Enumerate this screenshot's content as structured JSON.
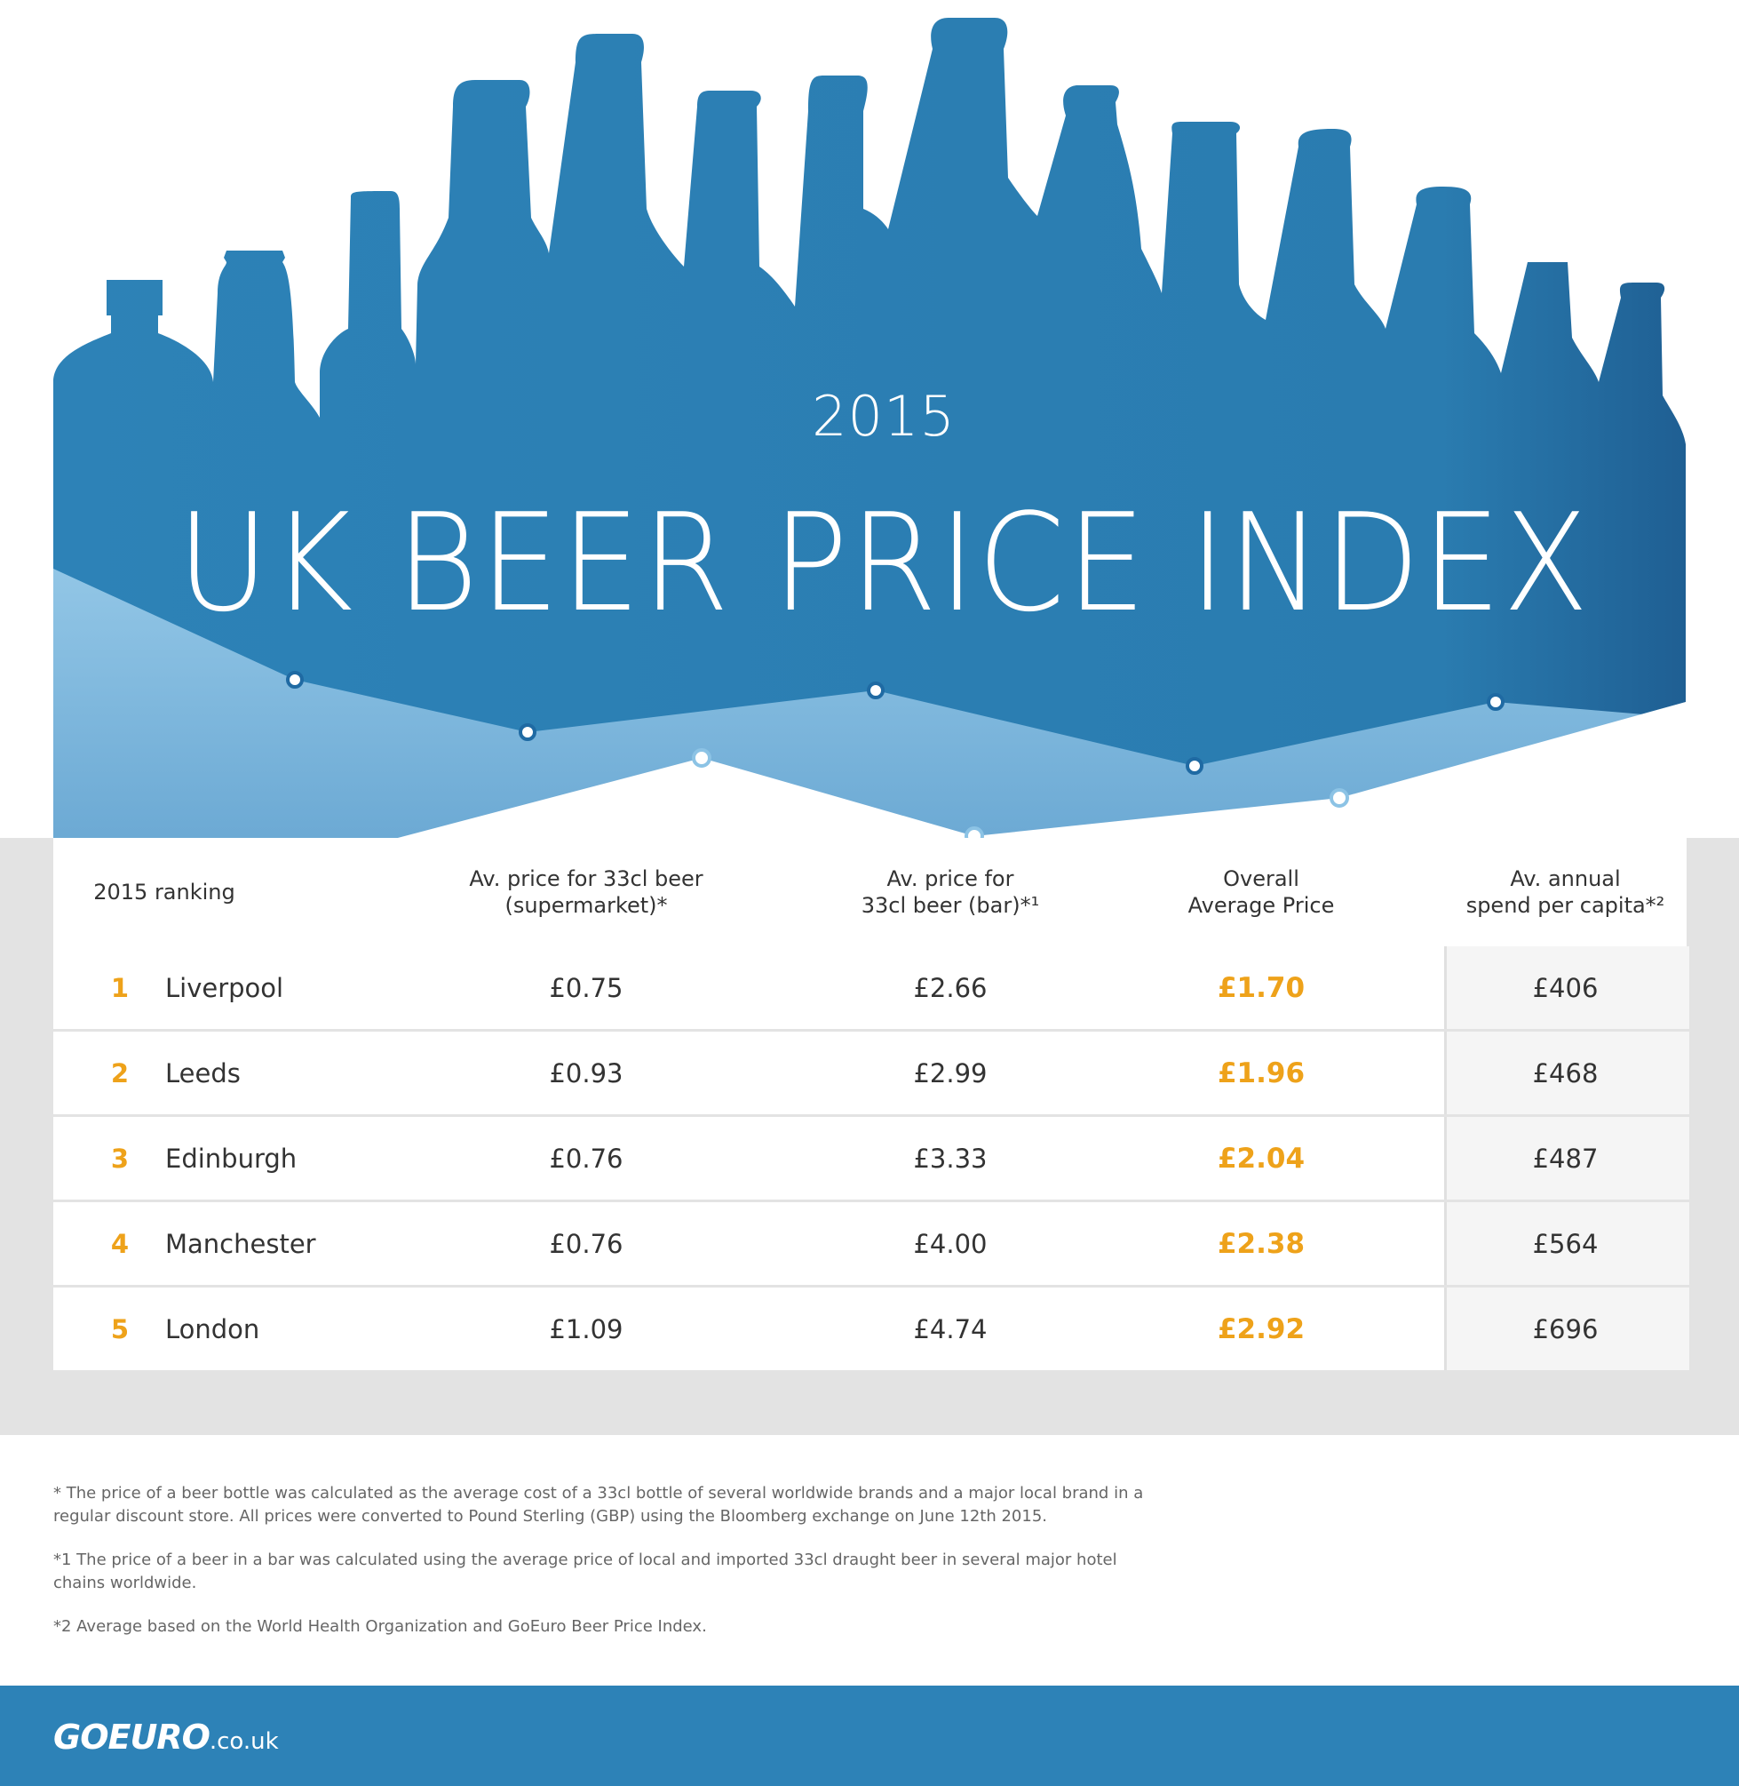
{
  "header": {
    "year": "2015",
    "title": "UK BEER PRICE INDEX"
  },
  "colors": {
    "bottle_blue": "#2d82b7",
    "light_blue": "#8cc3e5",
    "accent_orange": "#eea21a",
    "band_gray": "#e3e3e3",
    "footer_blue": "#2d82b7"
  },
  "table": {
    "headers": {
      "ranking": "2015 ranking",
      "supermarket": [
        "Av. price for 33cl beer",
        "(supermarket)*"
      ],
      "bar": [
        "Av. price for",
        "33cl beer (bar)*¹"
      ],
      "overall": [
        "Overall",
        "Average Price"
      ],
      "spend": [
        "Av. annual",
        "spend per capita*²"
      ]
    },
    "rows": [
      {
        "rank": "1",
        "city": "Liverpool",
        "supermarket": "£0.75",
        "bar": "£2.66",
        "overall": "£1.70",
        "spend": "£406"
      },
      {
        "rank": "2",
        "city": "Leeds",
        "supermarket": "£0.93",
        "bar": "£2.99",
        "overall": "£1.96",
        "spend": "£468"
      },
      {
        "rank": "3",
        "city": "Edinburgh",
        "supermarket": "£0.76",
        "bar": "£3.33",
        "overall": "£2.04",
        "spend": "£487"
      },
      {
        "rank": "4",
        "city": "Manchester",
        "supermarket": "£0.76",
        "bar": "£4.00",
        "overall": "£2.38",
        "spend": "£564"
      },
      {
        "rank": "5",
        "city": "London",
        "supermarket": "£1.09",
        "bar": "£4.74",
        "overall": "£2.92",
        "spend": "£696"
      }
    ]
  },
  "notes": [
    "* The price of a beer bottle was calculated as the average cost of a 33cl bottle of several worldwide brands and a major local brand in a regular discount store. All prices were converted to Pound Sterling (GBP) using the Bloomberg exchange on June 12th 2015.",
    "*1 The price of a beer in a bar was calculated using the average price of local and imported 33cl draught beer in several major hotel chains worldwide.",
    "*2 Average based on the World Health Organization and GoEuro Beer Price Index."
  ],
  "footer": {
    "brand": "GOEURO",
    "domain": ".co.uk"
  }
}
